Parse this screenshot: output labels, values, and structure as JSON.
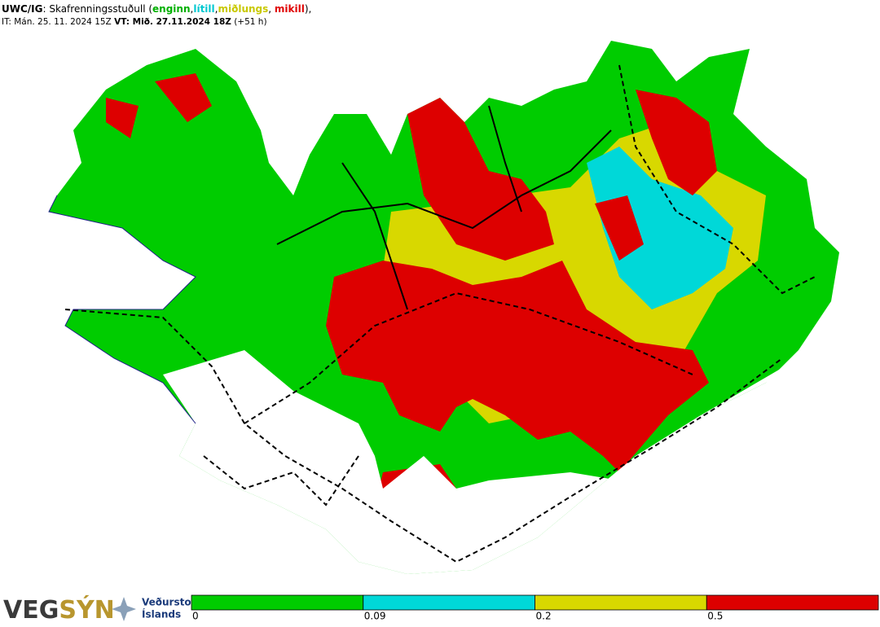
{
  "header": {
    "line1": [
      {
        "text": "UWC/IG",
        "bold": true,
        "color": "#000000"
      },
      {
        "text": ": Skafrenningsstuðull (",
        "bold": false,
        "color": "#000000"
      },
      {
        "text": "enginn",
        "bold": true,
        "color": "#00b000"
      },
      {
        "text": ",",
        "bold": false,
        "color": "#000000"
      },
      {
        "text": "lítill",
        "bold": true,
        "color": "#00c8d0"
      },
      {
        "text": ",",
        "bold": false,
        "color": "#000000"
      },
      {
        "text": "miðlungs",
        "bold": true,
        "color": "#c8c800"
      },
      {
        "text": ", ",
        "bold": false,
        "color": "#000000"
      },
      {
        "text": "mikill",
        "bold": true,
        "color": "#e00000"
      },
      {
        "text": "),",
        "bold": false,
        "color": "#000000"
      }
    ],
    "line2": [
      {
        "text": "IT: Mán. 25. 11. 2024 15Z ",
        "bold": false
      },
      {
        "text": "VT: Mið. 27.11.2024 18Z",
        "bold": true
      },
      {
        "text": " (+51 h)",
        "bold": false
      }
    ]
  },
  "logo": {
    "vegsyn": [
      {
        "text": "VEG",
        "color": "#3a3a3a"
      },
      {
        "text": "SÝN",
        "color": "#b8962e"
      }
    ],
    "vedurstofa": [
      "Veðurstofa",
      "Íslands"
    ]
  },
  "legend": {
    "colors": [
      "#00cc00",
      "#00d8d8",
      "#d8d800",
      "#dd0000"
    ],
    "ticks": [
      0,
      0.09,
      0.2,
      0.5
    ]
  }
}
